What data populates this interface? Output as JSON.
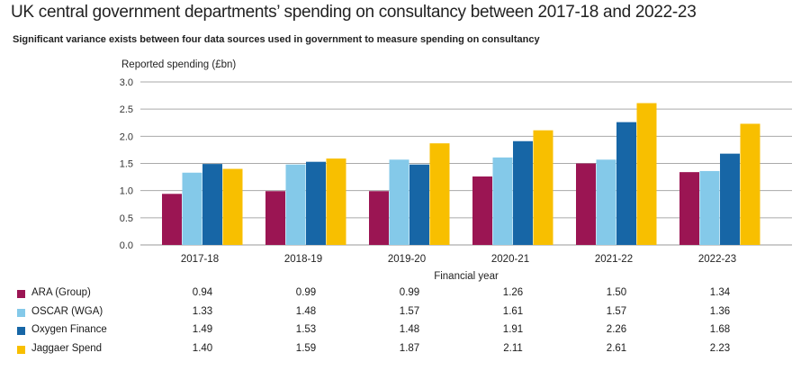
{
  "title": "UK central government departments’ spending on consultancy between 2017-18 and 2022-23",
  "subtitle": "Significant variance exists between four data sources used in government to measure spending on consultancy",
  "chart_data": {
    "type": "bar",
    "ylabel": "Reported spending (£bn)",
    "xlabel": "Financial year",
    "ylim": [
      0,
      3.0
    ],
    "yticks": [
      "0.0",
      "0.5",
      "1.0",
      "1.5",
      "2.0",
      "2.5",
      "3.0"
    ],
    "grid": true,
    "legend": "table-below",
    "categories": [
      "2017-18",
      "2018-19",
      "2019-20",
      "2020-21",
      "2021-22",
      "2022-23"
    ],
    "series": [
      {
        "name": "ARA (Group)",
        "color": "#9b1553",
        "values": [
          0.94,
          0.99,
          0.99,
          1.26,
          1.5,
          1.34
        ],
        "labels": [
          "0.94",
          "0.99",
          "0.99",
          "1.26",
          "1.50",
          "1.34"
        ]
      },
      {
        "name": "OSCAR (WGA)",
        "color": "#84c9e9",
        "values": [
          1.33,
          1.48,
          1.57,
          1.61,
          1.57,
          1.36
        ],
        "labels": [
          "1.33",
          "1.48",
          "1.57",
          "1.61",
          "1.57",
          "1.36"
        ]
      },
      {
        "name": "Oxygen Finance",
        "color": "#1766a6",
        "values": [
          1.49,
          1.53,
          1.48,
          1.91,
          2.26,
          1.68
        ],
        "labels": [
          "1.49",
          "1.53",
          "1.48",
          "1.91",
          "2.26",
          "1.68"
        ]
      },
      {
        "name": "Jaggaer Spend",
        "color": "#f8bf00",
        "values": [
          1.4,
          1.59,
          1.87,
          2.11,
          2.61,
          2.23
        ],
        "labels": [
          "1.40",
          "1.59",
          "1.87",
          "2.11",
          "2.61",
          "2.23"
        ]
      }
    ]
  }
}
